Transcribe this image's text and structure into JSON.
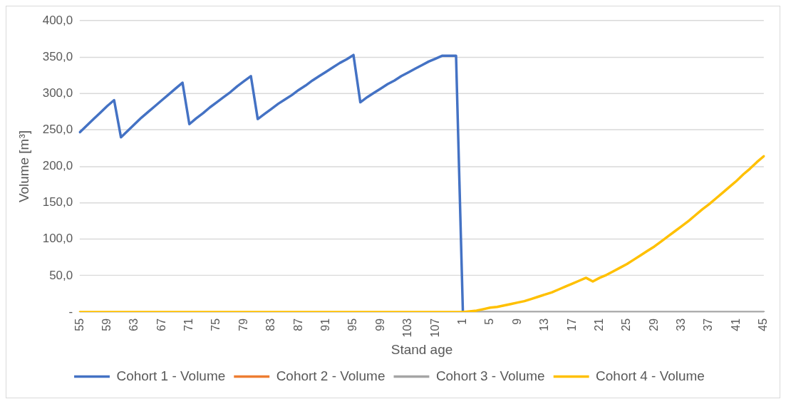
{
  "chart_data": {
    "type": "line",
    "xlabel": "Stand age",
    "ylabel": "Volume [m³]",
    "categories": [
      "55",
      null,
      null,
      null,
      "59",
      null,
      null,
      null,
      "63",
      null,
      null,
      null,
      "67",
      null,
      null,
      null,
      "71",
      null,
      null,
      null,
      "75",
      null,
      null,
      null,
      "79",
      null,
      null,
      null,
      "83",
      null,
      null,
      null,
      "87",
      null,
      null,
      null,
      "91",
      null,
      null,
      null,
      "95",
      null,
      null,
      null,
      "99",
      null,
      null,
      null,
      "103",
      null,
      null,
      null,
      "107",
      null,
      null,
      null,
      "1",
      null,
      null,
      null,
      "5",
      null,
      null,
      null,
      "9",
      null,
      null,
      null,
      "13",
      null,
      null,
      null,
      "17",
      null,
      null,
      null,
      "21",
      null,
      null,
      null,
      "25",
      null,
      null,
      null,
      "29",
      null,
      null,
      null,
      "33",
      null,
      null,
      null,
      "37",
      null,
      null,
      null,
      "41",
      null,
      null,
      null,
      "45"
    ],
    "ylim": [
      0,
      400
    ],
    "yticks": [
      {
        "value": 0,
        "label": "-"
      },
      {
        "value": 50,
        "label": "50,0"
      },
      {
        "value": 100,
        "label": "100,0"
      },
      {
        "value": 150,
        "label": "150,0"
      },
      {
        "value": 200,
        "label": "200,0"
      },
      {
        "value": 250,
        "label": "250,0"
      },
      {
        "value": 300,
        "label": "300,0"
      },
      {
        "value": 350,
        "label": "350,0"
      },
      {
        "value": 400,
        "label": "400,0"
      }
    ],
    "grid": "y",
    "legend": "bottom",
    "marker": "none",
    "line_style": "solid",
    "series": [
      {
        "name": "Cohort 1 - Volume",
        "color": "#4472c4",
        "values": [
          247,
          256,
          265,
          274,
          283,
          291,
          240,
          249,
          258,
          267,
          275,
          283,
          291,
          299,
          307,
          315,
          258,
          266,
          273,
          281,
          288,
          295,
          302,
          310,
          317,
          324,
          265,
          272,
          279,
          286,
          292,
          298,
          305,
          311,
          318,
          324,
          330,
          336,
          342,
          347,
          353,
          288,
          295,
          301,
          307,
          313,
          318,
          324,
          329,
          334,
          339,
          344,
          348,
          352,
          352,
          352,
          0,
          null,
          null,
          null,
          null,
          null,
          null,
          null,
          null,
          null,
          null,
          null,
          null,
          null,
          null,
          null,
          null,
          null,
          null,
          null,
          null,
          null,
          null,
          null,
          null,
          null,
          null,
          null,
          null,
          null,
          null,
          null,
          null,
          null,
          null,
          null,
          null,
          null,
          null,
          null,
          null,
          null,
          null,
          null,
          null
        ]
      },
      {
        "name": "Cohort 2 - Volume",
        "color": "#ed7d31",
        "values": [
          null,
          null,
          null,
          null,
          null,
          null,
          null,
          null,
          null,
          null,
          null,
          null,
          null,
          null,
          null,
          null,
          null,
          null,
          null,
          null,
          null,
          null,
          null,
          null,
          null,
          null,
          null,
          null,
          null,
          null,
          null,
          null,
          null,
          null,
          null,
          null,
          null,
          null,
          null,
          null,
          null,
          null,
          null,
          null,
          null,
          null,
          null,
          null,
          null,
          null,
          null,
          null,
          null,
          null,
          null,
          null,
          null,
          null,
          null,
          null,
          null,
          null,
          null,
          null,
          null,
          null,
          null,
          null,
          null,
          null,
          null,
          null,
          null,
          null,
          null,
          null,
          null,
          null,
          null,
          null,
          null,
          null,
          null,
          null,
          null,
          null,
          null,
          null,
          null,
          null,
          null,
          null,
          null,
          null,
          null,
          null,
          null,
          null,
          null,
          null,
          null
        ]
      },
      {
        "name": "Cohort 3 - Volume",
        "color": "#a5a5a5",
        "values": [
          null,
          null,
          null,
          null,
          null,
          null,
          null,
          null,
          null,
          null,
          null,
          null,
          null,
          null,
          null,
          null,
          null,
          null,
          null,
          null,
          null,
          null,
          null,
          null,
          null,
          null,
          null,
          null,
          null,
          null,
          null,
          null,
          null,
          null,
          null,
          null,
          null,
          null,
          null,
          null,
          null,
          null,
          null,
          null,
          null,
          null,
          null,
          null,
          null,
          null,
          null,
          null,
          null,
          null,
          null,
          null,
          0,
          0,
          0,
          0,
          0,
          0,
          0,
          0,
          0,
          0,
          0,
          0,
          0,
          0,
          0,
          0,
          0,
          0,
          0,
          0,
          0,
          0,
          0,
          0,
          0,
          0,
          0,
          0,
          0,
          0,
          0,
          0,
          0,
          0,
          0,
          0,
          0,
          0,
          0,
          0,
          0,
          0,
          0,
          0,
          0
        ]
      },
      {
        "name": "Cohort 4 - Volume",
        "color": "#ffc000",
        "values": [
          0,
          0,
          0,
          0,
          0,
          0,
          0,
          0,
          0,
          0,
          0,
          0,
          0,
          0,
          0,
          0,
          0,
          0,
          0,
          0,
          0,
          0,
          0,
          0,
          0,
          0,
          0,
          0,
          0,
          0,
          0,
          0,
          0,
          0,
          0,
          0,
          0,
          0,
          0,
          0,
          0,
          0,
          0,
          0,
          0,
          0,
          0,
          0,
          0,
          0,
          0,
          0,
          0,
          0,
          0,
          0,
          0,
          1,
          2,
          4,
          6,
          7,
          9,
          11,
          13,
          15,
          18,
          21,
          24,
          27,
          31,
          35,
          39,
          43,
          47,
          42,
          47,
          51,
          56,
          61,
          66,
          72,
          78,
          84,
          90,
          97,
          104,
          111,
          118,
          125,
          133,
          141,
          148,
          156,
          164,
          172,
          180,
          189,
          197,
          206,
          214
        ]
      }
    ]
  }
}
